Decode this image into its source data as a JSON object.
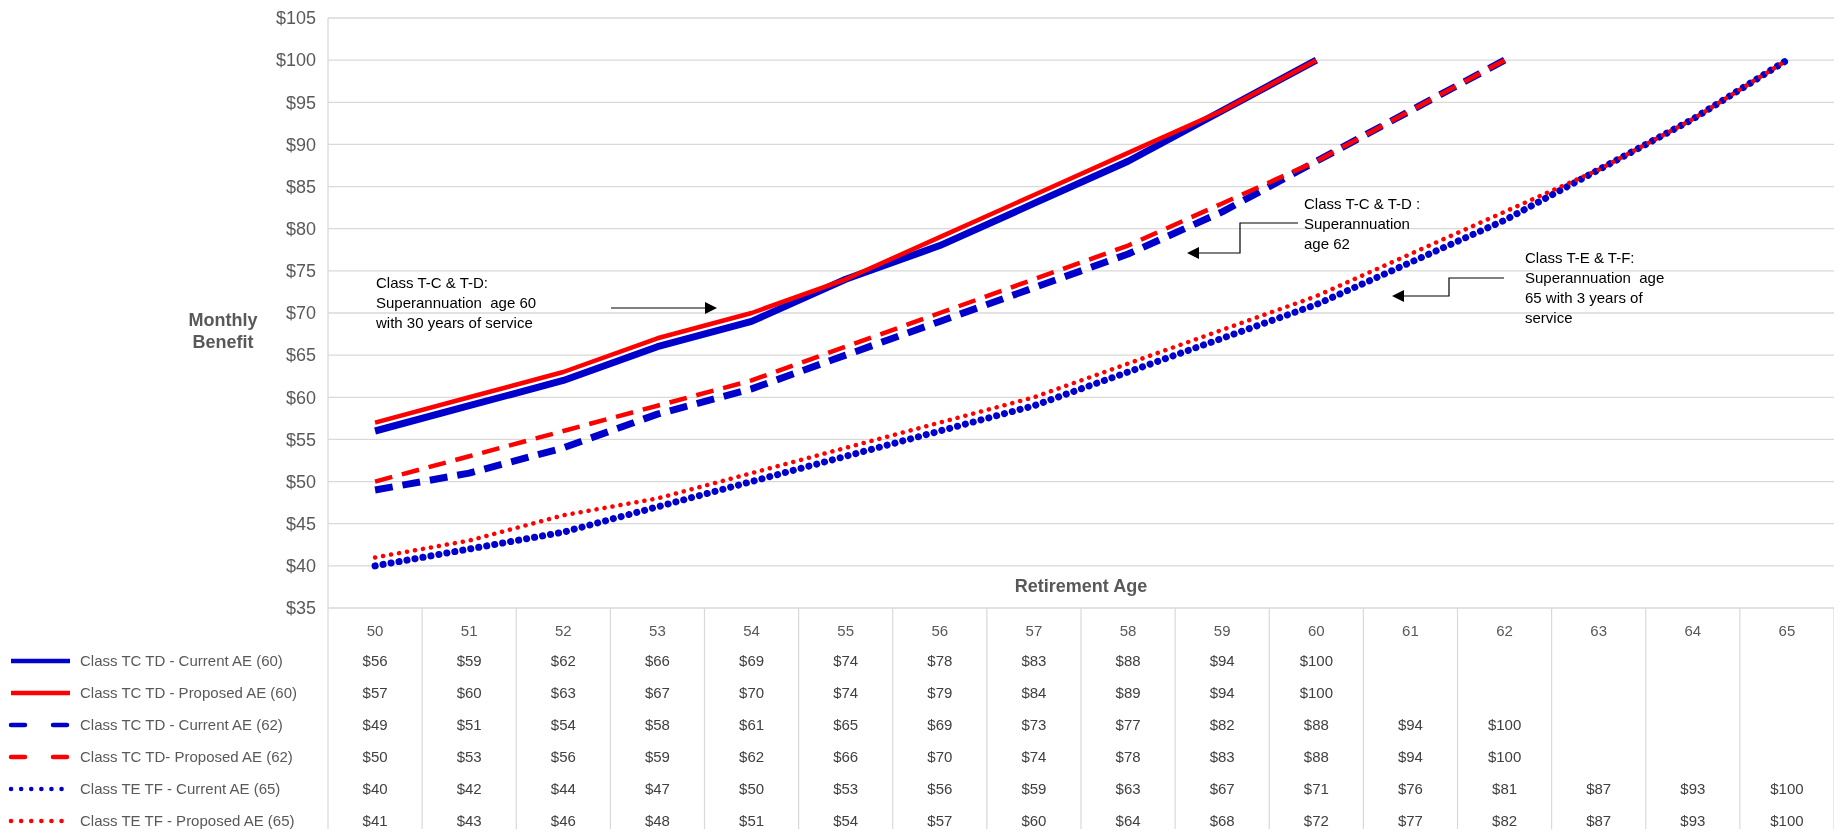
{
  "chart_data": {
    "type": "line",
    "xlabel": "Retirement Age",
    "ylabel": "Monthly\nBenefit",
    "categories": [
      "50",
      "51",
      "52",
      "53",
      "54",
      "55",
      "56",
      "57",
      "58",
      "59",
      "60",
      "61",
      "62",
      "63",
      "64",
      "65"
    ],
    "ylim": [
      35,
      105
    ],
    "yticks": [
      {
        "value": 35,
        "label": "$35"
      },
      {
        "value": 40,
        "label": "$40"
      },
      {
        "value": 45,
        "label": "$45"
      },
      {
        "value": 50,
        "label": "$50"
      },
      {
        "value": 55,
        "label": "$55"
      },
      {
        "value": 60,
        "label": "$60"
      },
      {
        "value": 65,
        "label": "$65"
      },
      {
        "value": 70,
        "label": "$70"
      },
      {
        "value": 75,
        "label": "$75"
      },
      {
        "value": 80,
        "label": "$80"
      },
      {
        "value": 85,
        "label": "$85"
      },
      {
        "value": 90,
        "label": "$90"
      },
      {
        "value": 95,
        "label": "$95"
      },
      {
        "value": 100,
        "label": "$100"
      },
      {
        "value": 105,
        "label": "$105"
      }
    ],
    "grid": "y",
    "legend": "bottom left",
    "series": [
      {
        "name": "Class TC TD - Current AE (60)",
        "color": "#0000cc",
        "line_style": "solid",
        "values": [
          56,
          59,
          62,
          66,
          69,
          74,
          78,
          83,
          88,
          94,
          100,
          null,
          null,
          null,
          null,
          null
        ],
        "value_labels": [
          "$56",
          "$59",
          "$62",
          "$66",
          "$69",
          "$74",
          "$78",
          "$83",
          "$88",
          "$94",
          "$100",
          null,
          null,
          null,
          null,
          null
        ]
      },
      {
        "name": "Class TC TD - Proposed AE (60)",
        "color": "#ff0000",
        "line_style": "solid",
        "values": [
          57,
          60,
          63,
          67,
          70,
          74,
          79,
          84,
          89,
          94,
          100,
          null,
          null,
          null,
          null,
          null
        ],
        "value_labels": [
          "$57",
          "$60",
          "$63",
          "$67",
          "$70",
          "$74",
          "$79",
          "$84",
          "$89",
          "$94",
          "$100",
          null,
          null,
          null,
          null,
          null
        ]
      },
      {
        "name": "Class TC TD - Current AE (62)",
        "color": "#0000cc",
        "line_style": "dashed",
        "values": [
          49,
          51,
          54,
          58,
          61,
          65,
          69,
          73,
          77,
          82,
          88,
          94,
          100,
          null,
          null,
          null
        ],
        "value_labels": [
          "$49",
          "$51",
          "$54",
          "$58",
          "$61",
          "$65",
          "$69",
          "$73",
          "$77",
          "$82",
          "$88",
          "$94",
          "$100",
          null,
          null,
          null
        ]
      },
      {
        "name": "Class TC TD- Proposed AE (62)",
        "color": "#ff0000",
        "line_style": "dashed",
        "values": [
          50,
          53,
          56,
          59,
          62,
          66,
          70,
          74,
          78,
          83,
          88,
          94,
          100,
          null,
          null,
          null
        ],
        "value_labels": [
          "$50",
          "$53",
          "$56",
          "$59",
          "$62",
          "$66",
          "$70",
          "$74",
          "$78",
          "$83",
          "$88",
          "$94",
          "$100",
          null,
          null,
          null
        ]
      },
      {
        "name": "Class TE TF - Current AE (65)",
        "color": "#0000cc",
        "line_style": "dotted",
        "values": [
          40,
          42,
          44,
          47,
          50,
          53,
          56,
          59,
          63,
          67,
          71,
          76,
          81,
          87,
          93,
          100
        ],
        "value_labels": [
          "$40",
          "$42",
          "$44",
          "$47",
          "$50",
          "$53",
          "$56",
          "$59",
          "$63",
          "$67",
          "$71",
          "$76",
          "$81",
          "$87",
          "$93",
          "$100"
        ]
      },
      {
        "name": "Class TE TF - Proposed AE (65)",
        "color": "#ff0000",
        "line_style": "dotted",
        "values": [
          41,
          43,
          46,
          48,
          51,
          54,
          57,
          60,
          64,
          68,
          72,
          77,
          82,
          87,
          93,
          100
        ],
        "value_labels": [
          "$41",
          "$43",
          "$46",
          "$48",
          "$51",
          "$54",
          "$57",
          "$60",
          "$64",
          "$68",
          "$72",
          "$77",
          "$82",
          "$87",
          "$93",
          "$100"
        ]
      }
    ],
    "annotations": [
      "Class T-C & T-D:\nSuperannuation  age 60\nwith 30 years of service",
      "Class T-C & T-D :\nSuperannuation\nage 62",
      "Class T-E & T-F:\nSuperannuation  age\n65 with 3 years of\nservice"
    ]
  }
}
